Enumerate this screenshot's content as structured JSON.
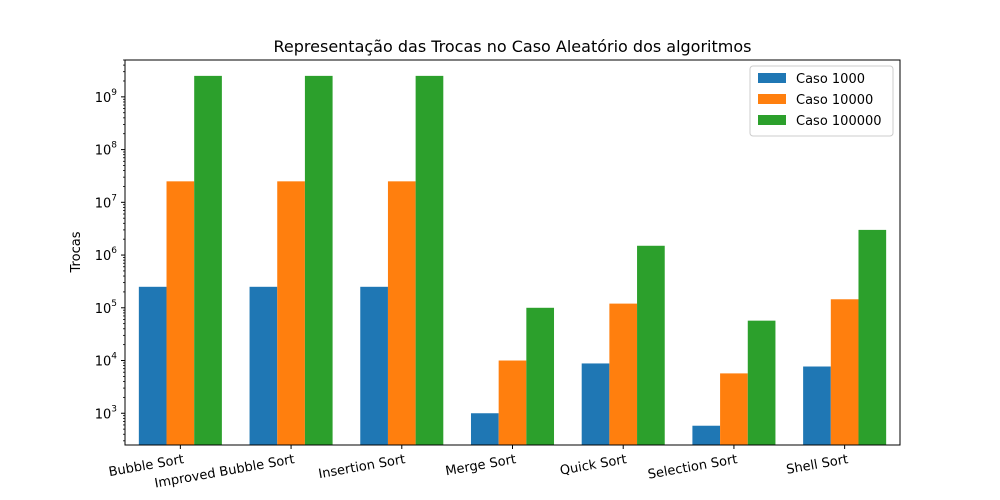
{
  "chart_data": {
    "type": "bar",
    "title": "Representação das Trocas no Caso Aleatório dos algoritmos",
    "xlabel": "",
    "ylabel": "Trocas",
    "yscale": "log",
    "ylim": [
      250,
      5000000000
    ],
    "yticks": [
      {
        "value": 1000,
        "base": "10",
        "exp": "3"
      },
      {
        "value": 10000,
        "base": "10",
        "exp": "4"
      },
      {
        "value": 100000,
        "base": "10",
        "exp": "5"
      },
      {
        "value": 1000000,
        "base": "10",
        "exp": "6"
      },
      {
        "value": 10000000,
        "base": "10",
        "exp": "7"
      },
      {
        "value": 100000000,
        "base": "10",
        "exp": "8"
      },
      {
        "value": 1000000000,
        "base": "10",
        "exp": "9"
      }
    ],
    "categories": [
      "Bubble Sort",
      "Improved Bubble Sort",
      "Insertion Sort",
      "Merge Sort",
      "Quick Sort",
      "Selection Sort",
      "Shell Sort"
    ],
    "series": [
      {
        "name": "Caso 1000",
        "color": "#1f77b4",
        "values": [
          250000,
          250000,
          250000,
          1000,
          8800,
          580,
          7700
        ]
      },
      {
        "name": "Caso 10000",
        "color": "#ff7f0e",
        "values": [
          25000000,
          25000000,
          25000000,
          10000,
          120000,
          5700,
          145000
        ]
      },
      {
        "name": "Caso 100000",
        "color": "#2ca02c",
        "values": [
          2500000000,
          2500000000,
          2500000000,
          100000,
          1500000,
          57000,
          3000000
        ]
      }
    ],
    "legend": "top-right",
    "grid": false
  }
}
